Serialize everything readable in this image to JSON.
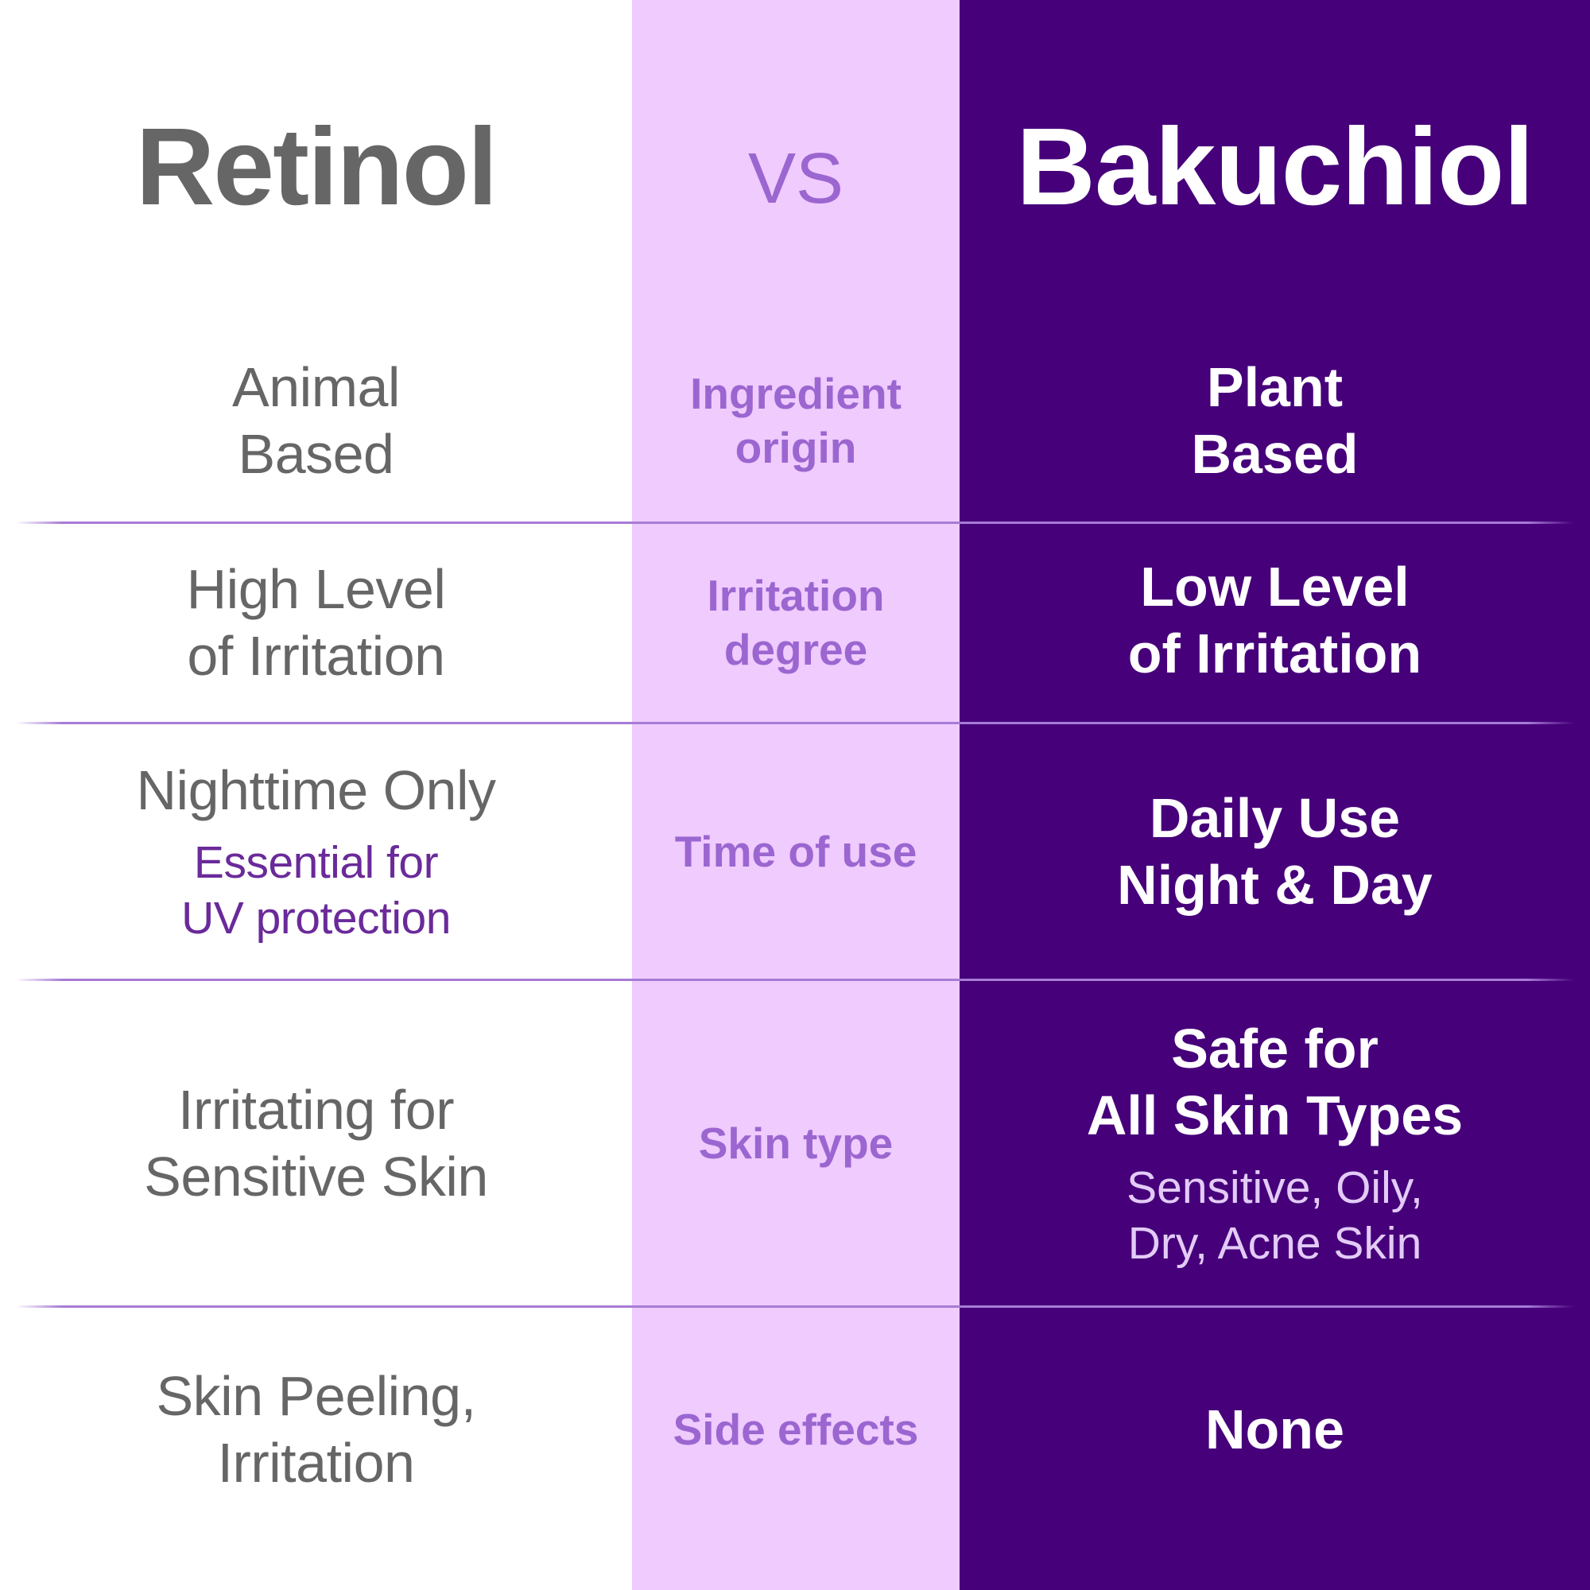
{
  "colors": {
    "left_bg": "#ffffff",
    "middle_bg": "#efcbfe",
    "right_bg": "#46007a",
    "divider": "#a77bd6",
    "left_text": "#666666",
    "middle_text": "#9b66d0",
    "right_text": "#ffffff"
  },
  "header": {
    "left": "Retinol",
    "middle": "VS",
    "right": "Bakuchiol"
  },
  "rows": [
    {
      "left": [
        "Animal",
        "Based"
      ],
      "middle": [
        "Ingredient",
        "origin"
      ],
      "right": [
        "Plant",
        "Based"
      ]
    },
    {
      "left": [
        "High Level",
        "of Irritation"
      ],
      "middle": [
        "Irritation",
        "degree"
      ],
      "right": [
        "Low Level",
        "of Irritation"
      ]
    },
    {
      "left": [
        "Nighttime Only"
      ],
      "left_sub": [
        "Essential for",
        "UV protection"
      ],
      "middle": [
        "Time of use"
      ],
      "right": [
        "Daily Use",
        "Night & Day"
      ]
    },
    {
      "left": [
        "Irritating for",
        "Sensitive Skin"
      ],
      "middle": [
        "Skin type"
      ],
      "right": [
        "Safe for",
        "All Skin Types"
      ],
      "right_sub": [
        "Sensitive, Oily,",
        "Dry, Acne Skin"
      ]
    },
    {
      "left": [
        "Skin Peeling,",
        "Irritation"
      ],
      "middle": [
        "Side effects"
      ],
      "right": [
        "None"
      ]
    }
  ]
}
